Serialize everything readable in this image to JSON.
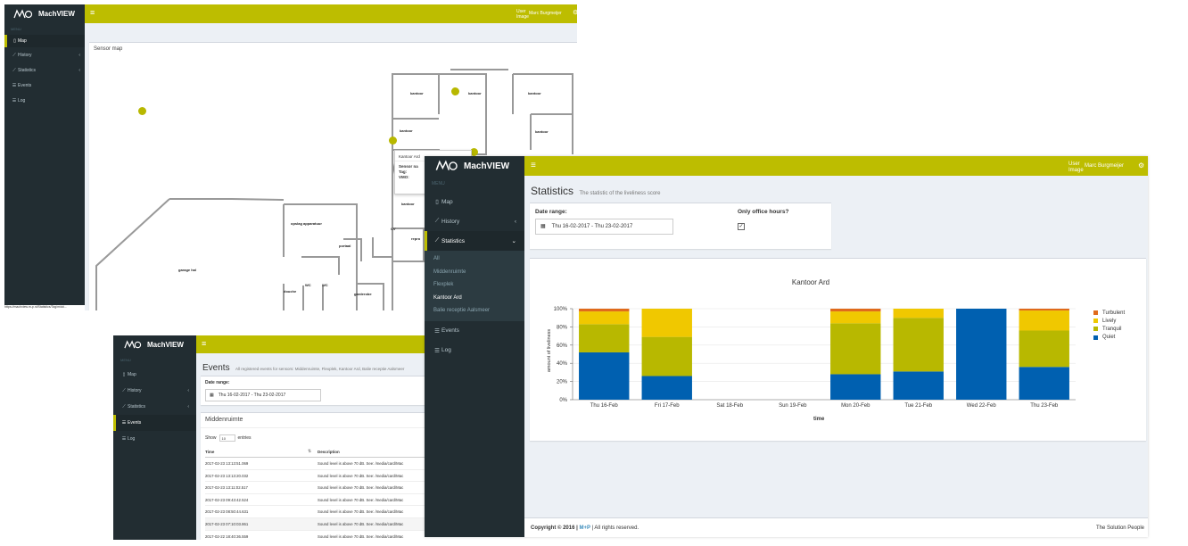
{
  "brand": {
    "name": "MachVIEW"
  },
  "colors": {
    "accent": "#bdbd00",
    "sidebar": "#222d32",
    "turbulent": "#e06a1b",
    "lively": "#f0c800",
    "tranquil": "#b8b800",
    "quiet": "#0060b0"
  },
  "sensor_window": {
    "user_label": "User Image",
    "user_name": "Marc Burgmeijer",
    "menu_header": "MENU",
    "menu": [
      {
        "label": "Map"
      },
      {
        "label": "History"
      },
      {
        "label": "Statistics"
      },
      {
        "label": "Events"
      },
      {
        "label": "Log"
      }
    ],
    "status_url": "https://machview.m-p.nl/Statistics/Tag/midd...",
    "box_title": "Sensor map",
    "rooms": [
      "kantoor",
      "kantoor",
      "kantoor",
      "kantoor",
      "kantoor",
      "kantoor",
      "opslag apparatuur",
      "portaal",
      "CV",
      "repro",
      "garage hal",
      "douche",
      "WC",
      "WC",
      "garderobe"
    ],
    "tooltip": {
      "title": "Kantoor Ard",
      "l1": "Sensor na",
      "l2": "Tag:",
      "l3": "VMO:"
    }
  },
  "events_window": {
    "menu_header": "MENU",
    "menu": [
      {
        "label": "Map"
      },
      {
        "label": "History"
      },
      {
        "label": "Statistics"
      },
      {
        "label": "Events"
      },
      {
        "label": "Log"
      }
    ],
    "title": "Events",
    "subtitle": "All registered events for sensors: Middenruimte, Flexplek, Kantoor Ard, Balie receptie Aalsmeer",
    "date_label": "Date range:",
    "date_value": "Thu 16-02-2017 - Thu 23-02-2017",
    "section_title": "Middenruimte",
    "show_label": "Show",
    "show_value": "10",
    "entries_label": "entries",
    "col_time": "Time",
    "col_desc": "Description",
    "rows": [
      {
        "time": "2017-02-23 13:13:51.069",
        "desc": "Sound level is above 70 dB. See: /media/card/Mac"
      },
      {
        "time": "2017-02-23 13:13:20.032",
        "desc": "Sound level is above 70 dB. See: /media/card/Mac"
      },
      {
        "time": "2017-02-23 13:11:02.517",
        "desc": "Sound level is above 70 dB. See: /media/card/Mac"
      },
      {
        "time": "2017-02-23 09:43:42.524",
        "desc": "Sound level is above 70 dB. See: /media/card/Mac"
      },
      {
        "time": "2017-02-23 08:50:44.631",
        "desc": "Sound level is above 70 dB. See: /media/card/Mac"
      },
      {
        "time": "2017-02-23 07:10:03.861",
        "desc": "Sound level is above 70 dB. See: /media/card/Mac"
      },
      {
        "time": "2017-02-22 18:40:36.559",
        "desc": "Sound level is above 70 dB. See: /media/card/Mac"
      }
    ]
  },
  "stats_window": {
    "user_label": "User Image",
    "user_name": "Marc Burgmeijer",
    "menu_header": "MENU",
    "menu": [
      {
        "label": "Map"
      },
      {
        "label": "History"
      },
      {
        "label": "Statistics"
      },
      {
        "label": "Events"
      },
      {
        "label": "Log"
      }
    ],
    "submenu": [
      {
        "label": "All"
      },
      {
        "label": "Middenruimte"
      },
      {
        "label": "Flexplek"
      },
      {
        "label": "Kantoor Ard"
      },
      {
        "label": "Balie receptie Aalsmeer"
      }
    ],
    "title": "Statistics",
    "subtitle": "The statistic of the liveliness score",
    "date_label": "Date range:",
    "date_value": "Thu 16-02-2017 - Thu 23-02-2017",
    "office_label": "Only office hours?",
    "footer_copyright": "Copyright © 2016 |",
    "footer_company": "M+P",
    "footer_rights": "| All rights reserved.",
    "footer_right": "The Solution People"
  },
  "chart_data": {
    "type": "bar",
    "stacked": true,
    "title": "Kantoor Ard",
    "xlabel": "time",
    "ylabel": "amount of liveliness",
    "ylim": [
      0,
      100
    ],
    "yticks": [
      "0%",
      "20%",
      "40%",
      "60%",
      "80%",
      "100%"
    ],
    "categories": [
      "Thu 16-Feb",
      "Fri 17-Feb",
      "Sat 18-Feb",
      "Sun 19-Feb",
      "Mon 20-Feb",
      "Tue 21-Feb",
      "Wed 22-Feb",
      "Thu 23-Feb"
    ],
    "legend_position": "right",
    "series": [
      {
        "name": "Quiet",
        "color": "#0060b0",
        "values": [
          52,
          26,
          0,
          0,
          28,
          31,
          100,
          36
        ]
      },
      {
        "name": "Tranquil",
        "color": "#b8b800",
        "values": [
          31,
          43,
          0,
          0,
          56,
          59,
          0,
          40
        ]
      },
      {
        "name": "Lively",
        "color": "#f0c800",
        "values": [
          14,
          31,
          0,
          0,
          13,
          10,
          0,
          22
        ]
      },
      {
        "name": "Turbulent",
        "color": "#e06a1b",
        "values": [
          3,
          0,
          0,
          0,
          3,
          0,
          0,
          2
        ]
      }
    ]
  }
}
